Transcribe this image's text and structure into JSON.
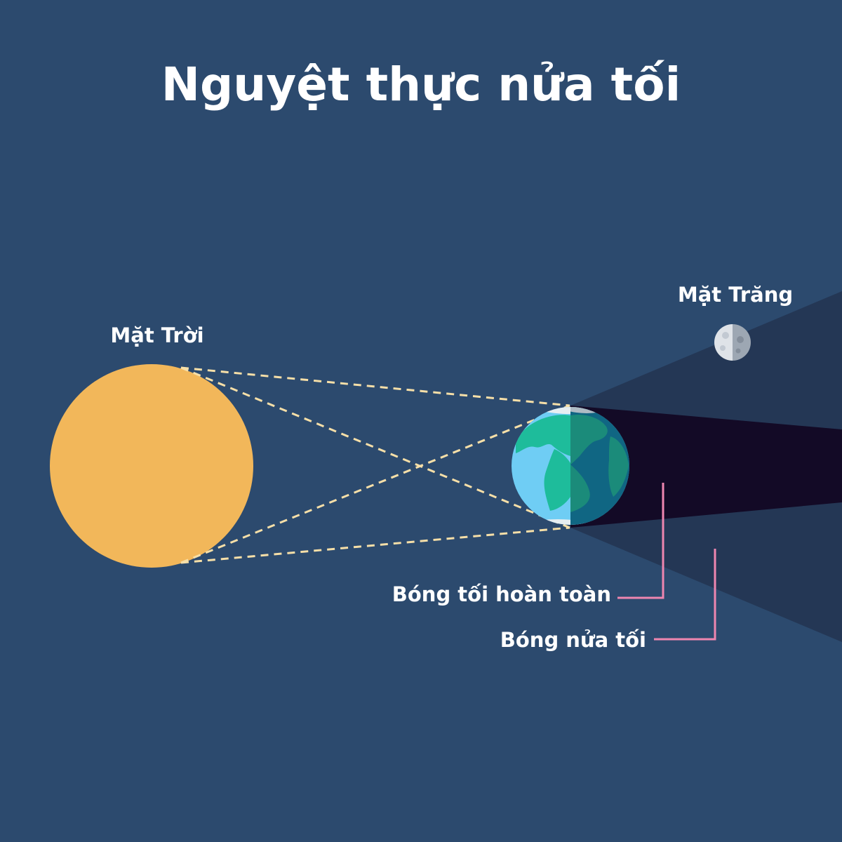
{
  "title": "Nguyệt thực nửa tối",
  "labels": {
    "sun": "Mặt Trời",
    "moon": "Mặt Trăng",
    "umbra": "Bóng tối hoàn toàn",
    "penumbra": "Bóng nửa tối"
  },
  "colors": {
    "background": "#2c4a6e",
    "sun": "#f2b75a",
    "rays": "#f6dfa8",
    "umbra": "#130a26",
    "penumbra": "#243755",
    "earth_ocean_day": "#6fcdf4",
    "earth_land_day": "#1ebc9b",
    "earth_ocean_night": "#106683",
    "earth_land_night": "#1b8b7a",
    "moon_light": "#dfe3e8",
    "moon_dark": "#9da7b3",
    "pointer": "#ee86b0"
  },
  "icons": {
    "sun": "sun-icon",
    "earth": "earth-icon",
    "moon": "moon-icon"
  }
}
